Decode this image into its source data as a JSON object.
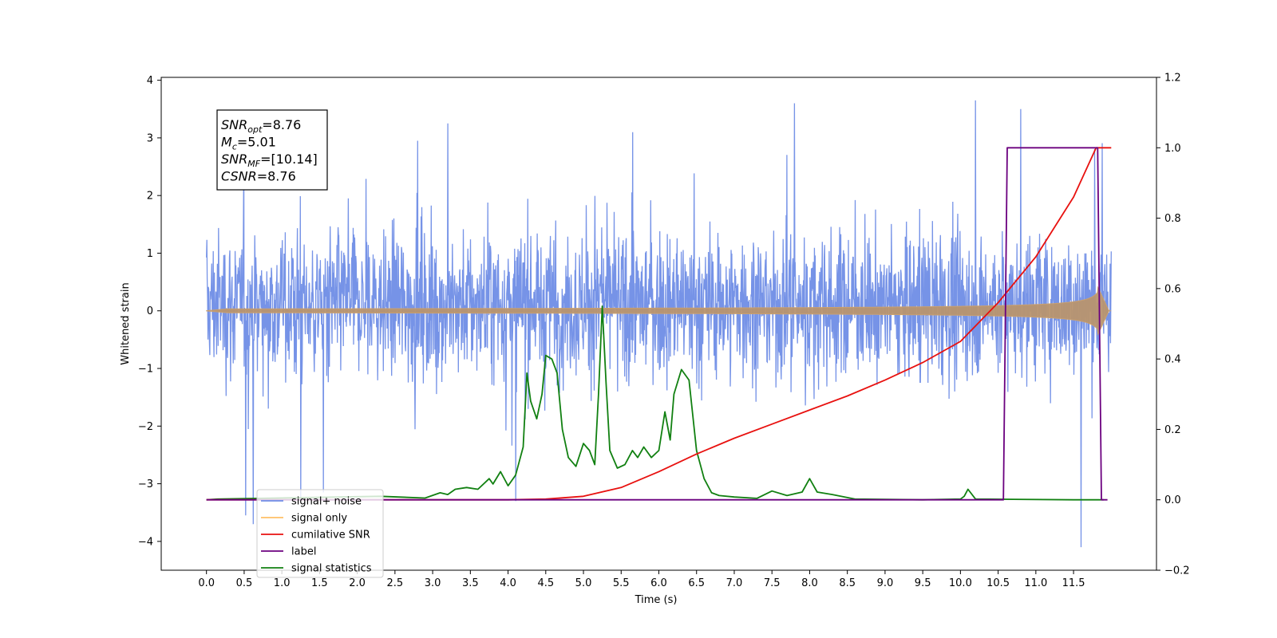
{
  "chart_data": {
    "type": "line",
    "title": "",
    "xlabel": "Time (s)",
    "ylabel_left": "Whitened strain",
    "ylabel_right": "",
    "xlim": [
      -0.6,
      12.6
    ],
    "ylim_left": [
      -4.5,
      4.05
    ],
    "ylim_right": [
      -0.2,
      1.2
    ],
    "grid": false,
    "legend_position": "lower-left",
    "x_ticks": [
      "0.0",
      "0.5",
      "1.0",
      "1.5",
      "2.0",
      "2.5",
      "3.0",
      "3.5",
      "4.0",
      "4.5",
      "5.0",
      "5.5",
      "6.0",
      "6.5",
      "7.0",
      "7.5",
      "8.0",
      "8.5",
      "9.0",
      "9.5",
      "10.0",
      "10.5",
      "11.0",
      "11.5"
    ],
    "y_ticks_left": [
      "4",
      "3",
      "2",
      "1",
      "0",
      "−1",
      "−2",
      "−3",
      "−4"
    ],
    "y_ticks_right": [
      "1.2",
      "1.0",
      "0.8",
      "0.6",
      "0.4",
      "0.2",
      "0.0",
      "−0.2"
    ],
    "annotation": {
      "lines": [
        {
          "base": "SNR",
          "sub": "opt",
          "rest": "=8.76"
        },
        {
          "base": "M",
          "sub": "c",
          "rest": "=5.01"
        },
        {
          "base": "SNR",
          "sub": "MF",
          "rest": "=[10.14]"
        },
        {
          "base": "CSNR",
          "sub": "",
          "rest": "=8.76"
        }
      ]
    },
    "series": [
      {
        "name": "signal+ noise",
        "axis": "left",
        "color": "#6f8de6",
        "kind": "noise",
        "x_range": [
          0.0,
          12.0
        ],
        "typical_envelope": [
          -1.8,
          2.0
        ],
        "extremes": [
          {
            "x": 0.52,
            "y": -3.55
          },
          {
            "x": 0.62,
            "y": -3.7
          },
          {
            "x": 1.25,
            "y": -3.3
          },
          {
            "x": 1.55,
            "y": -3.15
          },
          {
            "x": 2.8,
            "y": 2.95
          },
          {
            "x": 3.2,
            "y": 3.25
          },
          {
            "x": 4.1,
            "y": -3.3
          },
          {
            "x": 5.65,
            "y": 3.1
          },
          {
            "x": 7.8,
            "y": 3.6
          },
          {
            "x": 10.2,
            "y": 3.65
          },
          {
            "x": 10.8,
            "y": 3.5
          },
          {
            "x": 11.6,
            "y": -4.1
          }
        ]
      },
      {
        "name": "signal only",
        "axis": "left",
        "color": "#ffbf66",
        "kind": "chirp",
        "x_range": [
          0.0,
          12.0
        ],
        "amplitude_start": 0.0,
        "amplitude_peak": 0.7,
        "peak_x": 11.82
      },
      {
        "name": "cumilative SNR",
        "axis": "right",
        "color": "#e8110f",
        "x": [
          0.0,
          4.0,
          4.5,
          5.0,
          5.5,
          6.0,
          6.5,
          7.0,
          7.5,
          8.0,
          8.5,
          9.0,
          9.5,
          10.0,
          10.5,
          11.0,
          11.5,
          11.8,
          12.0
        ],
        "values": [
          0.0,
          0.0,
          0.002,
          0.01,
          0.035,
          0.08,
          0.13,
          0.175,
          0.215,
          0.255,
          0.295,
          0.34,
          0.39,
          0.45,
          0.56,
          0.69,
          0.86,
          1.0,
          1.0
        ]
      },
      {
        "name": "label",
        "axis": "right",
        "color": "#6b007f",
        "x": [
          0.0,
          10.57,
          10.62,
          11.82,
          11.87,
          11.95
        ],
        "values": [
          0.0,
          0.0,
          1.0,
          1.0,
          0.0,
          0.0
        ]
      },
      {
        "name": "signal statistics",
        "axis": "right",
        "color": "#118011",
        "x": [
          0.0,
          0.15,
          2.3,
          2.9,
          3.1,
          3.2,
          3.3,
          3.45,
          3.6,
          3.75,
          3.8,
          3.9,
          4.0,
          4.1,
          4.2,
          4.25,
          4.3,
          4.38,
          4.45,
          4.5,
          4.58,
          4.65,
          4.72,
          4.8,
          4.9,
          5.0,
          5.08,
          5.15,
          5.2,
          5.25,
          5.3,
          5.35,
          5.45,
          5.55,
          5.65,
          5.72,
          5.8,
          5.9,
          6.0,
          6.08,
          6.15,
          6.2,
          6.3,
          6.4,
          6.5,
          6.6,
          6.7,
          6.8,
          7.0,
          7.3,
          7.5,
          7.7,
          7.9,
          8.0,
          8.1,
          8.3,
          8.6,
          9.5,
          10.0,
          10.05,
          10.1,
          10.2,
          11.5,
          11.9
        ],
        "values": [
          0.0,
          0.002,
          0.01,
          0.005,
          0.02,
          0.015,
          0.03,
          0.035,
          0.03,
          0.06,
          0.045,
          0.08,
          0.04,
          0.07,
          0.15,
          0.36,
          0.28,
          0.23,
          0.3,
          0.41,
          0.4,
          0.36,
          0.2,
          0.12,
          0.095,
          0.16,
          0.14,
          0.1,
          0.3,
          0.55,
          0.33,
          0.14,
          0.09,
          0.1,
          0.14,
          0.12,
          0.15,
          0.12,
          0.14,
          0.25,
          0.17,
          0.3,
          0.37,
          0.34,
          0.14,
          0.06,
          0.02,
          0.012,
          0.008,
          0.004,
          0.025,
          0.012,
          0.022,
          0.06,
          0.022,
          0.015,
          0.002,
          0.0,
          0.002,
          0.01,
          0.03,
          0.002,
          0.0,
          0.0
        ]
      }
    ],
    "legend": [
      "signal+ noise",
      "signal only",
      "cumilative SNR",
      "label",
      "signal statistics"
    ]
  }
}
